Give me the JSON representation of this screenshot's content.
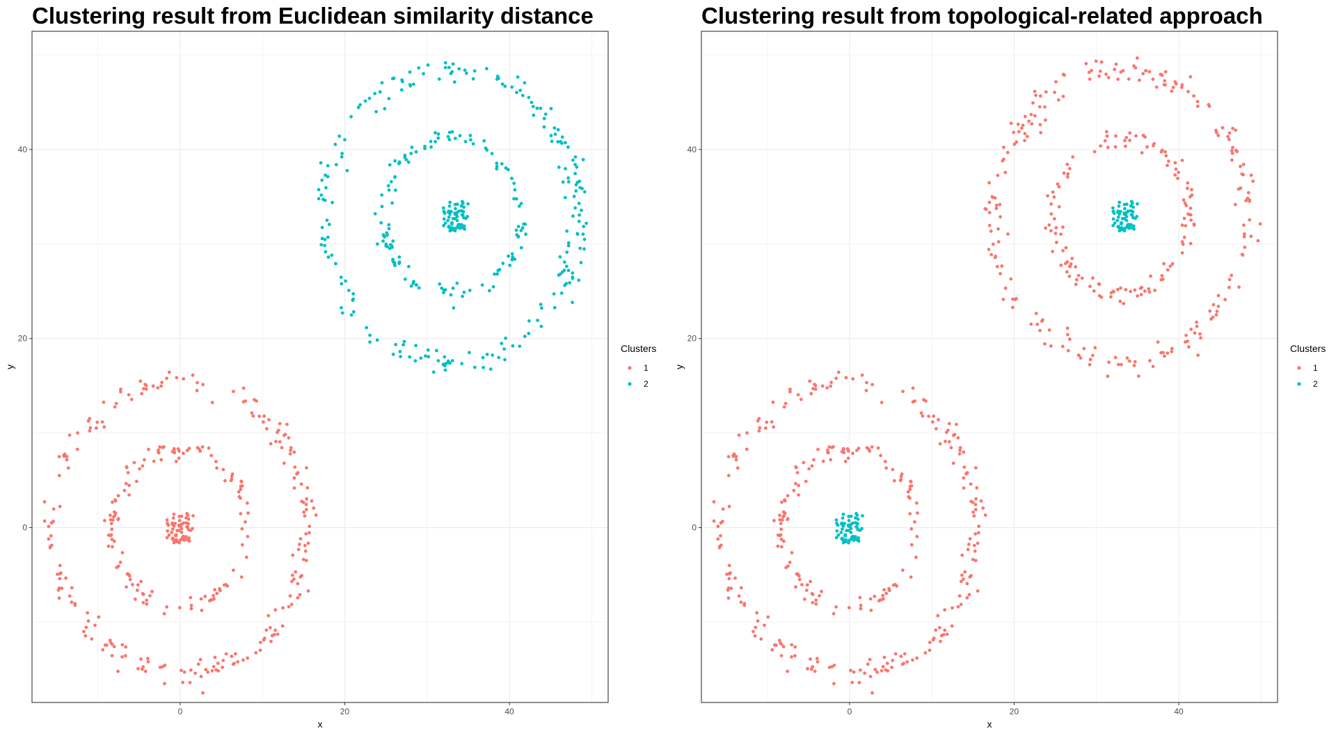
{
  "chart_data": [
    {
      "type": "scatter",
      "title": "Clustering result from Euclidean similarity distance",
      "xlabel": "x",
      "ylabel": "y",
      "xlim": [
        -18,
        52
      ],
      "ylim": [
        -18.5,
        52.5
      ],
      "x_ticks": [
        0,
        20,
        40
      ],
      "y_ticks": [
        0,
        20,
        40
      ],
      "grid": true,
      "legend": {
        "title": "Clusters",
        "placement": "right",
        "entries": [
          "1",
          "2"
        ]
      },
      "series": [
        {
          "name": "1",
          "color": "#F8766D",
          "structures": [
            {
              "shape": "ring",
              "cx": 0,
              "cy": 0,
              "r": 15.5,
              "n": 220,
              "spread": 0.7
            },
            {
              "shape": "ring",
              "cx": 0,
              "cy": 0,
              "r": 8.3,
              "n": 130,
              "spread": 0.5
            },
            {
              "shape": "blob",
              "cx": 0,
              "cy": 0,
              "rx": 1.6,
              "ry": 1.6,
              "n": 60
            }
          ]
        },
        {
          "name": "2",
          "color": "#00BFC4",
          "structures": [
            {
              "shape": "ring",
              "cx": 33,
              "cy": 33,
              "r": 15.5,
              "n": 220,
              "spread": 0.7
            },
            {
              "shape": "ring",
              "cx": 33,
              "cy": 33,
              "r": 8.3,
              "n": 130,
              "spread": 0.5
            },
            {
              "shape": "blob",
              "cx": 33.5,
              "cy": 33,
              "rx": 1.5,
              "ry": 1.6,
              "n": 60
            }
          ]
        }
      ]
    },
    {
      "type": "scatter",
      "title": "Clustering result from topological-related approach",
      "xlabel": "x",
      "ylabel": "y",
      "xlim": [
        -18,
        52
      ],
      "ylim": [
        -18.5,
        52.5
      ],
      "x_ticks": [
        0,
        20,
        40
      ],
      "y_ticks": [
        0,
        20,
        40
      ],
      "grid": true,
      "legend": {
        "title": "Clusters",
        "placement": "right",
        "entries": [
          "1",
          "2"
        ]
      },
      "series": [
        {
          "name": "1",
          "color": "#F8766D",
          "structures": [
            {
              "shape": "ring",
              "cx": 0,
              "cy": 0,
              "r": 15.5,
              "n": 220,
              "spread": 0.7
            },
            {
              "shape": "ring",
              "cx": 0,
              "cy": 0,
              "r": 8.3,
              "n": 130,
              "spread": 0.5
            },
            {
              "shape": "ring",
              "cx": 33,
              "cy": 33,
              "r": 15.5,
              "n": 220,
              "spread": 0.7
            },
            {
              "shape": "ring",
              "cx": 33,
              "cy": 33,
              "r": 8.3,
              "n": 130,
              "spread": 0.5
            }
          ]
        },
        {
          "name": "2",
          "color": "#00BFC4",
          "structures": [
            {
              "shape": "blob",
              "cx": 0,
              "cy": 0,
              "rx": 1.6,
              "ry": 1.6,
              "n": 60
            },
            {
              "shape": "blob",
              "cx": 33.5,
              "cy": 33,
              "rx": 1.5,
              "ry": 1.6,
              "n": 60
            }
          ]
        }
      ]
    }
  ]
}
